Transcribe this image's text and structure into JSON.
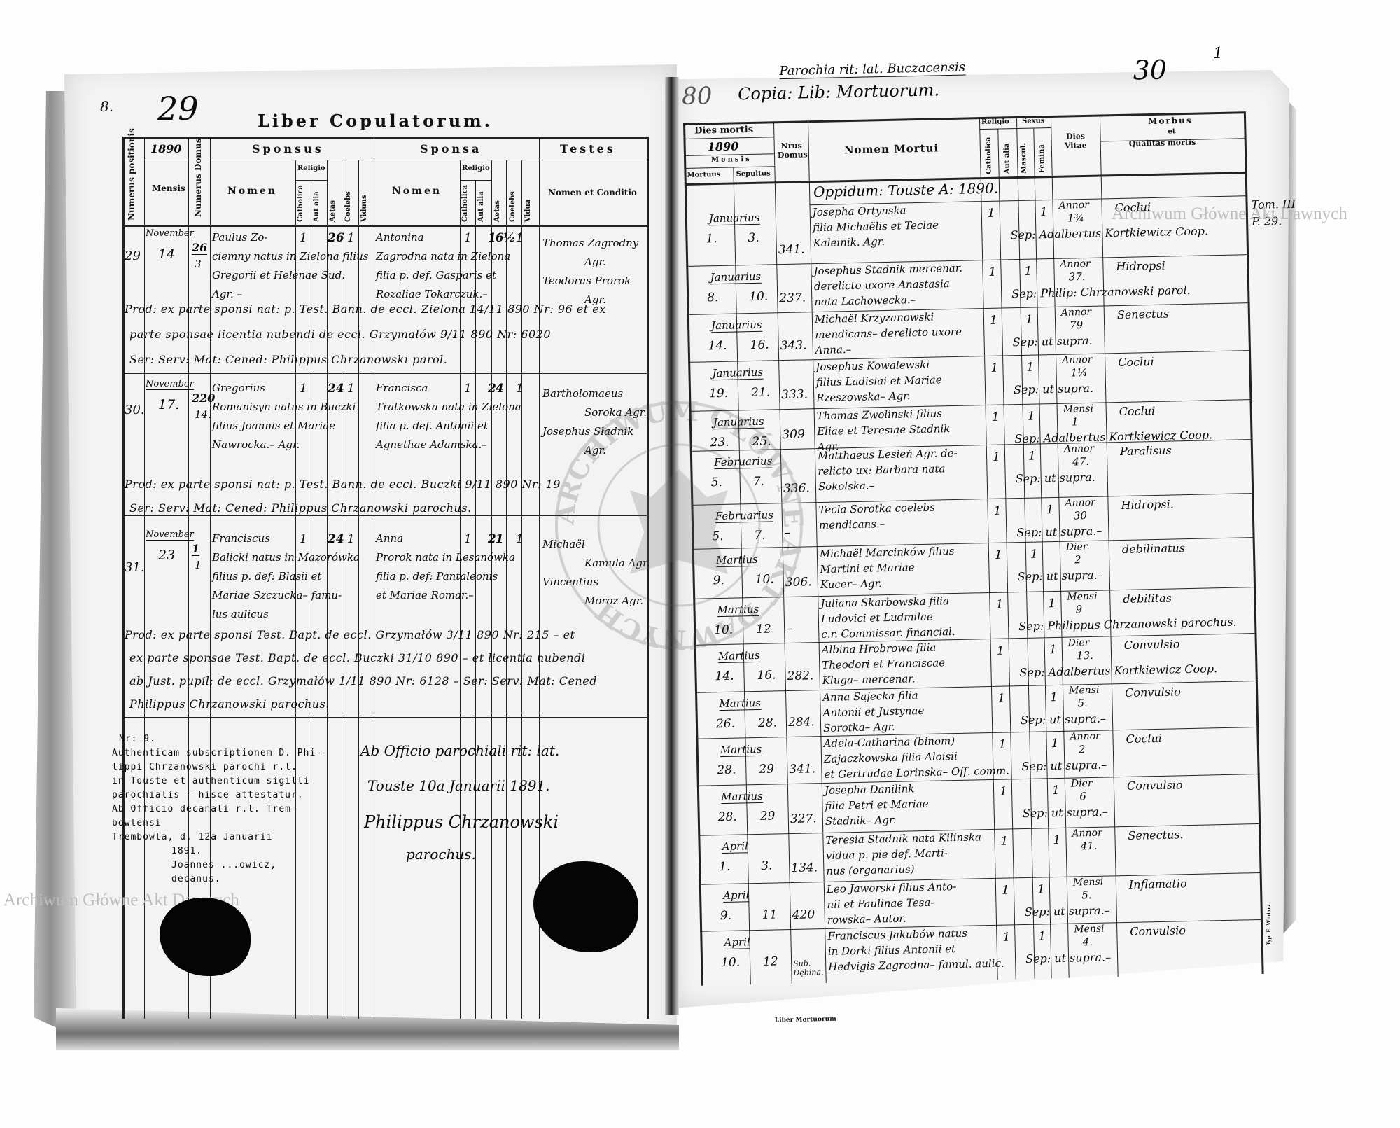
{
  "watermarks": [
    "Archiwum Główne Akt Dawnych",
    "Archiwum Główne Akt Dawnych"
  ],
  "archive_stamp": {
    "text": "ARCHIWUM GŁÓWNE AKT DAWNYCH"
  },
  "left_page": {
    "page_marker": "8.",
    "page_number": "29",
    "title": "Liber Copulatorum.",
    "header": {
      "numerus_positionis": "Numerus positionis",
      "year": "1890",
      "mensis": "Mensis",
      "numerus_domus": "Numerus Domus",
      "sponsus": "Sponsus",
      "sponsa": "Sponsa",
      "testes": "Testes",
      "nomen": "Nomen",
      "religio": "Religio",
      "catholica": "Catholica",
      "aut_alia": "Aut alia",
      "aetas": "Aetas",
      "coelebs": "Coelebs",
      "viduus": "Viduus",
      "vidua": "Vidua",
      "nomen_et_conditio": "Nomen et Conditio"
    },
    "entries": [
      {
        "number": "29",
        "month": "November",
        "day": "14",
        "domus_top": "26",
        "domus_bottom": "3",
        "sponsus": [
          "Paulus Zo-",
          "ciemny natus in Zielona filius",
          "Gregorii et Helenae Sud.",
          "Agr. –"
        ],
        "sponsus_catholica": "1",
        "sponsus_aetas": "26",
        "sponsus_coelebs": "1",
        "sponsa": [
          "Antonina",
          "Zagrodna nata in Zielona",
          "filia p. def. Gasparis et",
          "Rozaliae Tokarczuk.–"
        ],
        "sponsa_catholica": "1",
        "sponsa_aetas": "16½",
        "sponsa_coelebs": "1",
        "testes": [
          "Thomas Zagrodny",
          "Agr.",
          "Teodorus Prorok",
          "Agr."
        ],
        "notes": [
          "Prod: ex parte sponsi nat: p. Test. Bann. de eccl. Zielona 14/11 890 Nr: 96 et ex",
          "parte sponsae licentia nubendi de eccl. Grzymałów 9/11 890 Nr: 6020",
          "Ser: Serv: Mat: Cened: Philippus Chrzanowski parol."
        ]
      },
      {
        "number": "30.",
        "month": "November",
        "day": "17.",
        "domus_top": "220",
        "domus_bottom": "14.",
        "sponsus": [
          "Gregorius",
          "Romanisyn natus in Buczki",
          "filius Joannis et Mariae",
          "Nawrocka.– Agr."
        ],
        "sponsus_catholica": "1",
        "sponsus_aetas": "24",
        "sponsus_coelebs": "1",
        "sponsa": [
          "Francisca",
          "Tratkowska nata in Zielona",
          "filia p. def. Antonii et",
          "Agnethae Adamska.–"
        ],
        "sponsa_catholica": "1",
        "sponsa_aetas": "24",
        "sponsa_coelebs": "1",
        "testes": [
          "Bartholomaeus",
          "Sorokа Agr.",
          "Josephus Sładnik",
          "Agr."
        ],
        "notes": [
          "Prod: ex parte sponsi nat: p. Test. Bann. de eccl. Buczki 9/11 890 Nr: 19",
          "Ser: Serv: Mat: Cened: Philippus Chrzanowski parochus."
        ]
      },
      {
        "number": "31.",
        "month": "November",
        "day": "23",
        "domus_top": "1",
        "domus_bottom": "1",
        "sponsus": [
          "Franciscus",
          "Balicki natus in Mazorówka",
          "filius p. def: Blasii et",
          "Mariae Szczucka– famu-",
          "lus aulicus"
        ],
        "sponsus_catholica": "1",
        "sponsus_aetas": "24",
        "sponsus_coelebs": "1",
        "sponsa": [
          "Anna",
          "Prorok nata in Lesanówka",
          "filia p. def: Pantaleonis",
          "et Mariae Romar.–"
        ],
        "sponsa_catholica": "1",
        "sponsa_aetas": "21",
        "sponsa_coelebs": "1",
        "testes": [
          "Michaël",
          "Kamula Agr.",
          "Vincentius",
          "Moroz Agr."
        ],
        "notes": [
          "Prod: ex parte sponsi Test. Bapt. de eccl. Grzymałów 3/11 890 Nr: 215 – et",
          "ex parte sponsae Test. Bapt. de eccl. Buczki 31/10 890 – et licentia nubendi",
          "ab Just. pupil: de eccl. Grzymałów 1/11 890 Nr: 6128 – Ser: Serv: Mat: Cened",
          "Philippus Chrzanowski parochus."
        ]
      }
    ],
    "attestation": [
      "Nr: 9.",
      "Authenticam subscriptionem D. Phi-",
      "lippi Chrzanowski parochi r.l.",
      "in Touste et authenticum sigilli",
      "parochialis – hisce attestatur.",
      "Ab Officio decanali r.l. Trem-",
      "bowlensi",
      "Trembowla, d. 12a Januarii",
      "1891.",
      "Joannes ...owicz,",
      "decanus."
    ],
    "certification": [
      "Ab Officio parochiali rit: lat.",
      "Touste 10a Januarii 1891.",
      "Philippus Chrzanowski",
      "parochus."
    ]
  },
  "right_page": {
    "old_number": "80",
    "parish_note": "Parochia rit: lat. Buczacensis",
    "title": "Copia: Lib: Mortuorum.",
    "page_number": "30",
    "corner_mark": "1",
    "margin_note": [
      "Tom. III",
      "P. 29."
    ],
    "header": {
      "dies_mortis": "Dies mortis",
      "year": "1890",
      "mensis": "Mensis",
      "mortuus": "Mortuus",
      "sepultus": "Sepultus",
      "nrus_domus": "Nrus Domus",
      "nomen_mortui": "Nomen Mortui",
      "religio": "Religio",
      "catholica": "Catholica",
      "aut_alia": "Aut alia",
      "sexus": "Sexus",
      "masculinum": "Mascul.",
      "femina": "Femina",
      "dies_vitae": "Dies Vitae",
      "morbus": "Morbus",
      "morbus_et": "et",
      "qualitas_mortis": "Qualitas mortis"
    },
    "locality_row": "Oppidum: Touste   A: 1890.",
    "entries": [
      {
        "month": "Januarius",
        "mortuus": "1.",
        "sepultus": "3.",
        "domus": "341.",
        "name": [
          "Josepha Ortynska",
          "filia Michaëlis et Teclae",
          "Kaleinik. Agr."
        ],
        "catholica": "1",
        "masc": "",
        "fem": "1",
        "age_unit": "Annor",
        "age": "1¾",
        "morbus": "Coclui",
        "sepultura": "Sep: Adalbertus Kortkiewicz Coop."
      },
      {
        "month": "Januarius",
        "mortuus": "8.",
        "sepultus": "10.",
        "domus": "237.",
        "name": [
          "Josephus Stadnik mercenar.",
          "derelicto uxore Anastasia",
          "nata Lachowecka.–"
        ],
        "catholica": "1",
        "masc": "1",
        "fem": "",
        "age_unit": "Annor",
        "age": "37.",
        "morbus": "Hidropsi",
        "sepultura": "Sep: Philip: Chrzanowski parol."
      },
      {
        "month": "Januarius",
        "mortuus": "14.",
        "sepultus": "16.",
        "domus": "343.",
        "name": [
          "Michaël Krzyzanowski",
          "mendicans– derelicto uxore",
          "Anna.–"
        ],
        "catholica": "1",
        "masc": "1",
        "fem": "",
        "age_unit": "Annor",
        "age": "79",
        "morbus": "Senectus",
        "sepultura": "Sep: ut supra."
      },
      {
        "month": "Januarius",
        "mortuus": "19.",
        "sepultus": "21.",
        "domus": "333.",
        "name": [
          "Josephus Kowalewski",
          "filius Ladislai et Mariae",
          "Rzeszowska– Agr."
        ],
        "catholica": "1",
        "masc": "1",
        "fem": "",
        "age_unit": "Annor",
        "age": "1¼",
        "morbus": "Coclui",
        "sepultura": "Sep: ut supra."
      },
      {
        "month": "Januarius",
        "mortuus": "23.",
        "sepultus": "25.",
        "domus": "309",
        "name": [
          "Thomas Zwolinski filius",
          "Eliae et Teresiae Stadnik",
          "Agr."
        ],
        "catholica": "1",
        "masc": "1",
        "fem": "",
        "age_unit": "Mensi",
        "age": "1",
        "morbus": "Coclui",
        "sepultura": "Sep: Adalbertus Kortkiewicz Coop."
      },
      {
        "month": "Februarius",
        "mortuus": "5.",
        "sepultus": "7.",
        "domus": "336.",
        "name": [
          "Matthaeus Lesień Agr. de-",
          "relicto ux: Barbara nata",
          "Sokolska.–"
        ],
        "catholica": "1",
        "masc": "1",
        "fem": "",
        "age_unit": "Annor",
        "age": "47.",
        "morbus": "Paralisus",
        "sepultura": "Sep: ut supra."
      },
      {
        "month": "Februarius",
        "mortuus": "5.",
        "sepultus": "7.",
        "domus": "–",
        "name": [
          "Tecla Sorotka coelebs",
          "mendicans.–"
        ],
        "catholica": "1",
        "masc": "",
        "fem": "1",
        "age_unit": "Annor",
        "age": "30",
        "morbus": "Hidropsi.",
        "sepultura": "Sep: ut supra.–"
      },
      {
        "month": "Martius",
        "mortuus": "9.",
        "sepultus": "10.",
        "domus": "306.",
        "name": [
          "Michaël Marcinków filius",
          "Martini et Mariae",
          "Kucer– Agr."
        ],
        "catholica": "1",
        "masc": "1",
        "fem": "",
        "age_unit": "Dier",
        "age": "2",
        "morbus": "debilinatus",
        "sepultura": "Sep: ut supra.–"
      },
      {
        "month": "Martius",
        "mortuus": "10.",
        "sepultus": "12",
        "domus": "–",
        "name": [
          "Juliana Skarbowska filia",
          "Ludovici et Ludmilae",
          "c.r. Commissar. financial."
        ],
        "catholica": "1",
        "masc": "",
        "fem": "1",
        "age_unit": "Mensi",
        "age": "9",
        "morbus": "debilitas",
        "sepultura": "Sep: Philippus Chrzanowski parochus."
      },
      {
        "month": "Martius",
        "mortuus": "14.",
        "sepultus": "16.",
        "domus": "282.",
        "name": [
          "Albina Hrobrowa filia",
          "Theodori et Franciscae",
          "Kluga– mercenar."
        ],
        "catholica": "1",
        "masc": "",
        "fem": "1",
        "age_unit": "Dier",
        "age": "13.",
        "morbus": "Convulsio",
        "sepultura": "Sep: Adalbertus Kortkiewicz Coop."
      },
      {
        "month": "Martius",
        "mortuus": "26.",
        "sepultus": "28.",
        "domus": "284.",
        "name": [
          "Anna Sajecka filia",
          "Antonii et Justynae",
          "Sorotka– Agr."
        ],
        "catholica": "1",
        "masc": "",
        "fem": "1",
        "age_unit": "Mensi",
        "age": "5.",
        "morbus": "Convulsio",
        "sepultura": "Sep: ut supra.–"
      },
      {
        "month": "Martius",
        "mortuus": "28.",
        "sepultus": "29",
        "domus": "341.",
        "name": [
          "Adela-Catharina (binom)",
          "Zajaczkowska filia Aloisii",
          "et Gertrudae Lorinska– Off. comm."
        ],
        "catholica": "1",
        "masc": "",
        "fem": "1",
        "age_unit": "Annor",
        "age": "2",
        "morbus": "Coclui",
        "sepultura": "Sep: ut supra.–"
      },
      {
        "month": "Martius",
        "mortuus": "28.",
        "sepultus": "29",
        "domus": "327.",
        "name": [
          "Josepha Danilink",
          "filia Petri et Mariae",
          "Stadnik– Agr."
        ],
        "catholica": "1",
        "masc": "",
        "fem": "1",
        "age_unit": "Dier",
        "age": "6",
        "morbus": "Convulsio",
        "sepultura": "Sep: ut supra.–"
      },
      {
        "month": "April",
        "mortuus": "1.",
        "sepultus": "3.",
        "domus": "134.",
        "name": [
          "Teresia Stadnik nata Kilinska",
          "vidua p. pie def. Marti-",
          "nus (organarius)"
        ],
        "catholica": "1",
        "masc": "",
        "fem": "1",
        "age_unit": "Annor",
        "age": "41.",
        "morbus": "Senectus.",
        "sepultura": ""
      },
      {
        "month": "April",
        "mortuus": "9.",
        "sepultus": "11",
        "domus": "420",
        "name": [
          "Leo Jaworski filius Anto-",
          "nii et Paulinae Tesa-",
          "rowska– Autor."
        ],
        "catholica": "1",
        "masc": "1",
        "fem": "",
        "age_unit": "Mensi",
        "age": "5.",
        "morbus": "Inflamatio",
        "sepultura": "Sep: ut supra.–"
      },
      {
        "month": "April",
        "mortuus": "10.",
        "sepultus": "12",
        "domus": "Sub. Dębina.",
        "name": [
          "Franciscus Jakubów natus",
          "in Dorki filius Antonii et",
          "Hedvigis Zagrodna– famul. aulic."
        ],
        "catholica": "1",
        "masc": "1",
        "fem": "",
        "age_unit": "Mensi",
        "age": "4.",
        "morbus": "Convulsio",
        "sepultura": "Sep: ut supra.–"
      }
    ],
    "footer": "Liber Mortuorum",
    "printer": "Typ. E. Winiarz"
  }
}
